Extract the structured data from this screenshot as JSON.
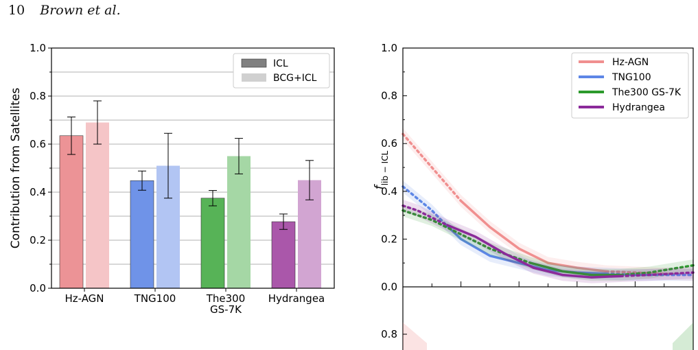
{
  "header": {
    "page_number": "10",
    "authors": "Brown et al."
  },
  "chart_data": [
    {
      "type": "bar",
      "ylabel": "Contribution from Satellites",
      "ylim": [
        0,
        1.0
      ],
      "yticks": [
        "0.0",
        "0.2",
        "0.4",
        "0.6",
        "0.8",
        "1.0"
      ],
      "grid": "horizontal",
      "categories": [
        "Hz-AGN",
        "TNG100",
        "The300 GS-7K",
        "Hydrangea"
      ],
      "category_labels": [
        [
          "Hz-AGN"
        ],
        [
          "TNG100"
        ],
        [
          "The300",
          "GS-7K"
        ],
        [
          "Hydrangea"
        ]
      ],
      "colors": [
        "#e66f73",
        "#3f6fe0",
        "#1f9a1f",
        "#8e1f8e"
      ],
      "legend": {
        "position": "top-right",
        "entries": [
          "ICL",
          "BCG+ICL"
        ]
      },
      "series": [
        {
          "name": "ICL",
          "values": [
            0.635,
            0.448,
            0.375,
            0.277
          ],
          "err": [
            0.078,
            0.04,
            0.032,
            0.032
          ]
        },
        {
          "name": "BCG+ICL",
          "values": [
            0.69,
            0.51,
            0.55,
            0.45
          ],
          "err": [
            0.09,
            0.135,
            0.074,
            0.082
          ]
        }
      ]
    },
    {
      "type": "line",
      "ylabel": "f_lib-ICL",
      "ylim": [
        0,
        1.0
      ],
      "yticks": [
        "0.0",
        "0.2",
        "0.4",
        "0.6",
        "0.8",
        "1.0"
      ],
      "lower_panel_ytick": "0.8",
      "legend": {
        "position": "top-right"
      },
      "xlim": [
        0,
        1
      ],
      "series": [
        {
          "name": "Hz-AGN",
          "color": "#f08f8f",
          "dotted": [
            [
              0.0,
              0.64
            ],
            [
              0.05,
              0.57
            ],
            [
              0.1,
              0.5
            ],
            [
              0.15,
              0.43
            ],
            [
              0.2,
              0.36
            ]
          ],
          "solid": [
            [
              0.2,
              0.36
            ],
            [
              0.3,
              0.25
            ],
            [
              0.4,
              0.16
            ],
            [
              0.5,
              0.1
            ],
            [
              0.6,
              0.08
            ],
            [
              0.7,
              0.065
            ]
          ],
          "dotted_end": [
            [
              0.7,
              0.065
            ],
            [
              0.8,
              0.06
            ],
            [
              0.9,
              0.055
            ],
            [
              1.0,
              0.05
            ]
          ]
        },
        {
          "name": "TNG100",
          "color": "#5d86e6",
          "dotted": [
            [
              0.0,
              0.42
            ],
            [
              0.05,
              0.37
            ],
            [
              0.1,
              0.32
            ],
            [
              0.14,
              0.27
            ]
          ],
          "solid": [
            [
              0.14,
              0.27
            ],
            [
              0.2,
              0.2
            ],
            [
              0.3,
              0.13
            ],
            [
              0.4,
              0.1
            ],
            [
              0.5,
              0.07
            ],
            [
              0.6,
              0.06
            ],
            [
              0.7,
              0.055
            ]
          ],
          "dotted_end": [
            [
              0.7,
              0.055
            ],
            [
              0.8,
              0.05
            ],
            [
              0.9,
              0.05
            ],
            [
              1.0,
              0.05
            ]
          ]
        },
        {
          "name": "The300 GS-7K",
          "color": "#2c9a2c",
          "dotted": [
            [
              0.0,
              0.32
            ],
            [
              0.1,
              0.28
            ],
            [
              0.2,
              0.22
            ],
            [
              0.3,
              0.16
            ],
            [
              0.44,
              0.1
            ]
          ],
          "solid": [
            [
              0.44,
              0.1
            ],
            [
              0.55,
              0.065
            ],
            [
              0.65,
              0.05
            ],
            [
              0.75,
              0.05
            ]
          ],
          "dotted_end": [
            [
              0.75,
              0.05
            ],
            [
              0.85,
              0.06
            ],
            [
              1.0,
              0.09
            ]
          ]
        },
        {
          "name": "Hydrangea",
          "color": "#8b2a9a",
          "dotted": [
            [
              0.0,
              0.34
            ],
            [
              0.05,
              0.32
            ],
            [
              0.1,
              0.29
            ],
            [
              0.15,
              0.26
            ]
          ],
          "solid": [
            [
              0.15,
              0.26
            ],
            [
              0.25,
              0.21
            ],
            [
              0.35,
              0.14
            ],
            [
              0.45,
              0.08
            ],
            [
              0.55,
              0.05
            ],
            [
              0.65,
              0.04
            ],
            [
              0.75,
              0.045
            ]
          ],
          "dotted_end": [
            [
              0.75,
              0.045
            ],
            [
              0.85,
              0.05
            ],
            [
              1.0,
              0.06
            ]
          ]
        }
      ]
    }
  ]
}
